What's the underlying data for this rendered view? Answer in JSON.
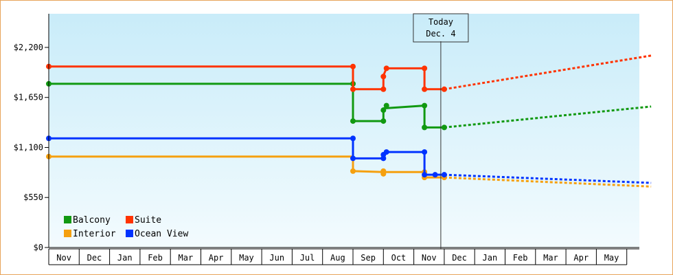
{
  "chart_data": {
    "type": "line",
    "title": "",
    "xlabel": "",
    "ylabel": "",
    "ylim": [
      0,
      2570
    ],
    "y_ticks": [
      "$0",
      "$550",
      "$1,100",
      "$1,650",
      "$2,200"
    ],
    "y_tick_values": [
      0,
      550,
      1100,
      1650,
      2200
    ],
    "x_months": [
      "Nov",
      "Dec",
      "Jan",
      "Feb",
      "Mar",
      "Apr",
      "May",
      "Jun",
      "Jul",
      "Aug",
      "Sep",
      "Oct",
      "Nov",
      "Dec",
      "Jan",
      "Feb",
      "Mar",
      "Apr",
      "May"
    ],
    "today_marker": {
      "line1": "Today",
      "line2": "Dec. 4",
      "x": 13.0
    },
    "grid": false,
    "legend_placement": "bottom-left",
    "series": [
      {
        "name": "Balcony",
        "color": "#119911",
        "points": [
          [
            0,
            1800
          ],
          [
            10.0,
            1800
          ],
          [
            10.0,
            1390
          ],
          [
            11.0,
            1390
          ],
          [
            11.0,
            1530
          ],
          [
            12.35,
            1560
          ],
          [
            12.35,
            1320
          ],
          [
            13.0,
            1320
          ]
        ],
        "markers": [
          [
            0,
            1800
          ],
          [
            10.0,
            1800
          ],
          [
            10.0,
            1390
          ],
          [
            11.0,
            1390
          ],
          [
            11.0,
            1510
          ],
          [
            11.1,
            1560
          ],
          [
            12.35,
            1560
          ],
          [
            12.35,
            1320
          ],
          [
            13.0,
            1320
          ]
        ],
        "forecast": [
          [
            13.0,
            1320
          ],
          [
            19.8,
            1550
          ]
        ]
      },
      {
        "name": "Suite",
        "color": "#ff3300",
        "points": [
          [
            0,
            1990
          ],
          [
            10.0,
            1990
          ],
          [
            10.0,
            1740
          ],
          [
            11.0,
            1740
          ],
          [
            11.0,
            1890
          ],
          [
            11.1,
            1970
          ],
          [
            12.35,
            1970
          ],
          [
            12.35,
            1740
          ],
          [
            13.0,
            1740
          ]
        ],
        "markers": [
          [
            0,
            1990
          ],
          [
            10.0,
            1990
          ],
          [
            10.0,
            1740
          ],
          [
            11.0,
            1740
          ],
          [
            11.0,
            1880
          ],
          [
            11.1,
            1970
          ],
          [
            12.35,
            1970
          ],
          [
            12.35,
            1740
          ],
          [
            13.0,
            1740
          ]
        ],
        "forecast": [
          [
            13.0,
            1740
          ],
          [
            19.8,
            2110
          ]
        ]
      },
      {
        "name": "Interior",
        "color": "#f5a00f",
        "points": [
          [
            0,
            1000
          ],
          [
            10.0,
            1000
          ],
          [
            10.0,
            840
          ],
          [
            11.0,
            830
          ],
          [
            12.35,
            830
          ],
          [
            12.35,
            770
          ],
          [
            13.0,
            770
          ]
        ],
        "markers": [
          [
            0,
            1000
          ],
          [
            10.0,
            840
          ],
          [
            11.0,
            840
          ],
          [
            11.0,
            810
          ],
          [
            12.35,
            830
          ],
          [
            12.35,
            770
          ],
          [
            13.0,
            770
          ]
        ],
        "forecast": [
          [
            13.0,
            770
          ],
          [
            19.8,
            670
          ]
        ]
      },
      {
        "name": "Ocean View",
        "color": "#0033ff",
        "points": [
          [
            0,
            1200
          ],
          [
            10.0,
            1200
          ],
          [
            10.0,
            980
          ],
          [
            11.0,
            980
          ],
          [
            11.0,
            1020
          ],
          [
            11.1,
            1050
          ],
          [
            12.35,
            1050
          ],
          [
            12.35,
            800
          ],
          [
            13.0,
            800
          ]
        ],
        "markers": [
          [
            0,
            1200
          ],
          [
            10.0,
            1200
          ],
          [
            10.0,
            980
          ],
          [
            11.0,
            980
          ],
          [
            11.0,
            1020
          ],
          [
            11.1,
            1050
          ],
          [
            12.35,
            1050
          ],
          [
            12.35,
            800
          ],
          [
            12.7,
            800
          ],
          [
            13.0,
            800
          ]
        ],
        "forecast": [
          [
            13.0,
            800
          ],
          [
            19.8,
            710
          ]
        ]
      }
    ]
  }
}
